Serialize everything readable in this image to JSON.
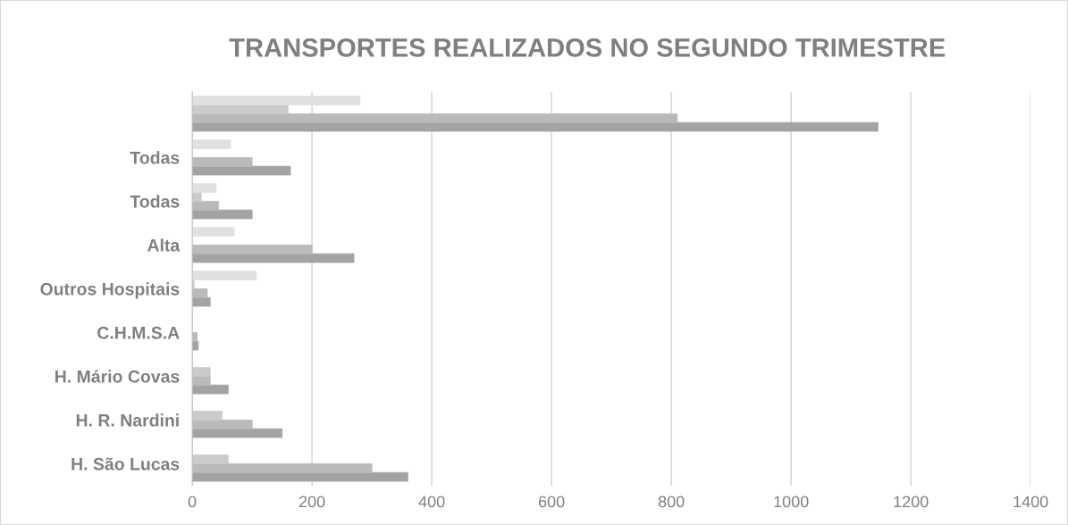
{
  "chart_data": {
    "type": "bar",
    "orientation": "horizontal",
    "title": "TRANSPORTES REALIZADOS NO SEGUNDO TRIMESTRE",
    "categories": [
      null,
      "Todas",
      "Todas",
      "Alta",
      "Outros Hospitais",
      "C.H.M.S.A",
      "H. Mário Covas",
      "H. R. Nardini",
      "H. São Lucas"
    ],
    "series": [
      {
        "color": "#a3a3a3",
        "values": [
          1145,
          164,
          100,
          270,
          30,
          10,
          60,
          150,
          360
        ]
      },
      {
        "color": "#bababa",
        "values": [
          810,
          100,
          44,
          200,
          25,
          8,
          30,
          100,
          300
        ]
      },
      {
        "color": "#cbcbcb",
        "values": [
          160,
          0,
          15,
          0,
          3,
          null,
          30,
          50,
          60
        ]
      },
      {
        "color": "#e0e0e0",
        "values": [
          280,
          64,
          40,
          70,
          107,
          0,
          0,
          0,
          0
        ]
      }
    ],
    "xlim": [
      0,
      1400
    ],
    "xticks": [
      0,
      200,
      400,
      600,
      800,
      1000,
      1200,
      1400
    ],
    "grid": "x",
    "legend": false
  }
}
